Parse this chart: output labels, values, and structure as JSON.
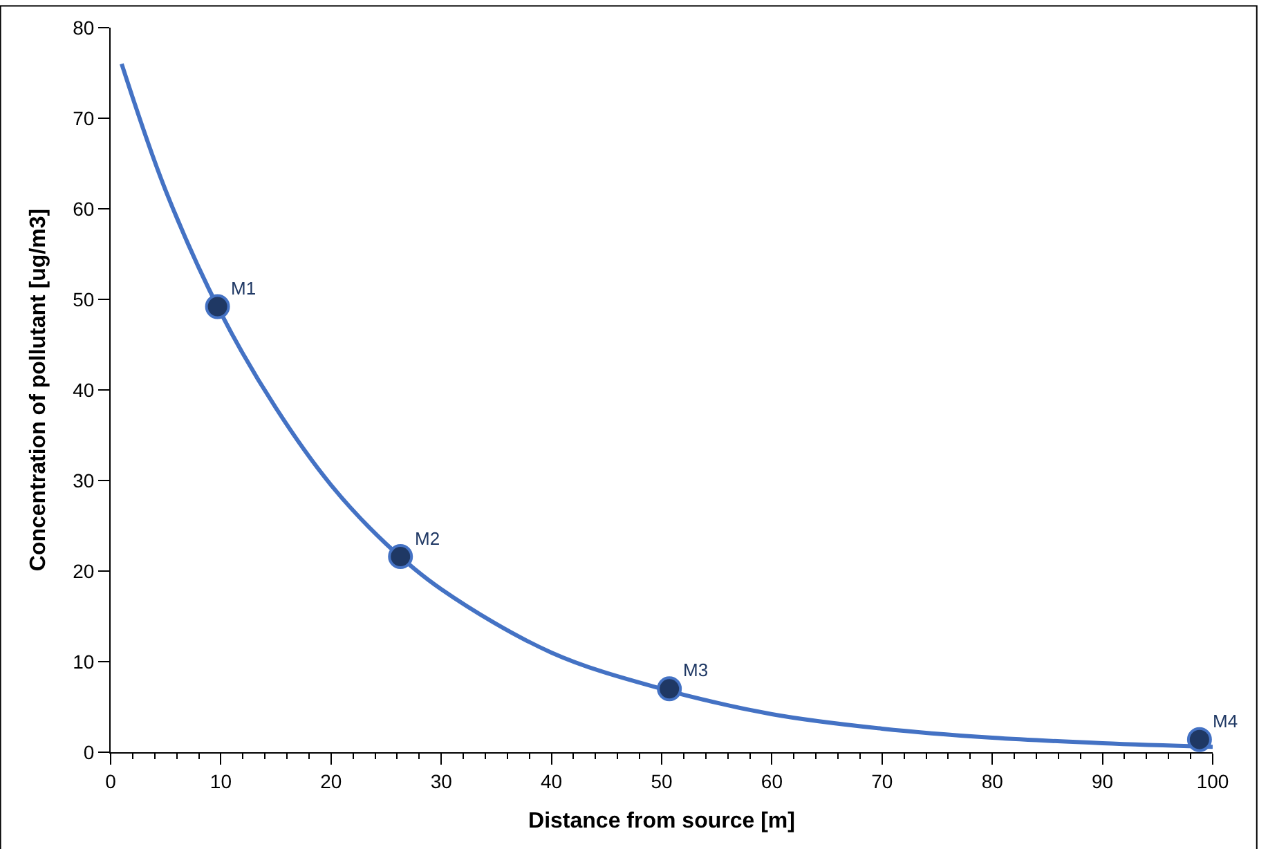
{
  "chart_data": {
    "type": "line",
    "xlabel": "Distance from source [m]",
    "ylabel": "Concentration of pollutant [ug/m3]",
    "series": [
      {
        "type": "line",
        "color": "#4472c4",
        "marker": "none",
        "x": [
          1,
          5,
          10,
          15,
          20,
          25,
          30,
          40,
          50,
          60,
          70,
          80,
          90,
          100
        ],
        "values": [
          76,
          62,
          48.5,
          38,
          29.5,
          23,
          18,
          11,
          7,
          4.2,
          2.6,
          1.6,
          1.0,
          0.6
        ]
      },
      {
        "type": "scatter",
        "color": "#1f3864",
        "marker": "circle",
        "x": [
          9.7,
          26.3,
          50.7,
          98.8
        ],
        "values": [
          49.2,
          21.6,
          7.0,
          1.4
        ]
      }
    ],
    "annotations": [
      {
        "text": "M1",
        "x": 9.7,
        "y": 49.2
      },
      {
        "text": "M2",
        "x": 26.3,
        "y": 21.6
      },
      {
        "text": "M3",
        "x": 50.7,
        "y": 7.0
      },
      {
        "text": "M4",
        "x": 98.8,
        "y": 1.4
      }
    ],
    "xlim": [
      0,
      100
    ],
    "xticks": [
      0,
      10,
      20,
      30,
      40,
      50,
      60,
      70,
      80,
      90,
      100
    ],
    "ylim": [
      0,
      80
    ],
    "yticks": [
      0,
      10,
      20,
      30,
      40,
      50,
      60,
      70,
      80
    ]
  }
}
